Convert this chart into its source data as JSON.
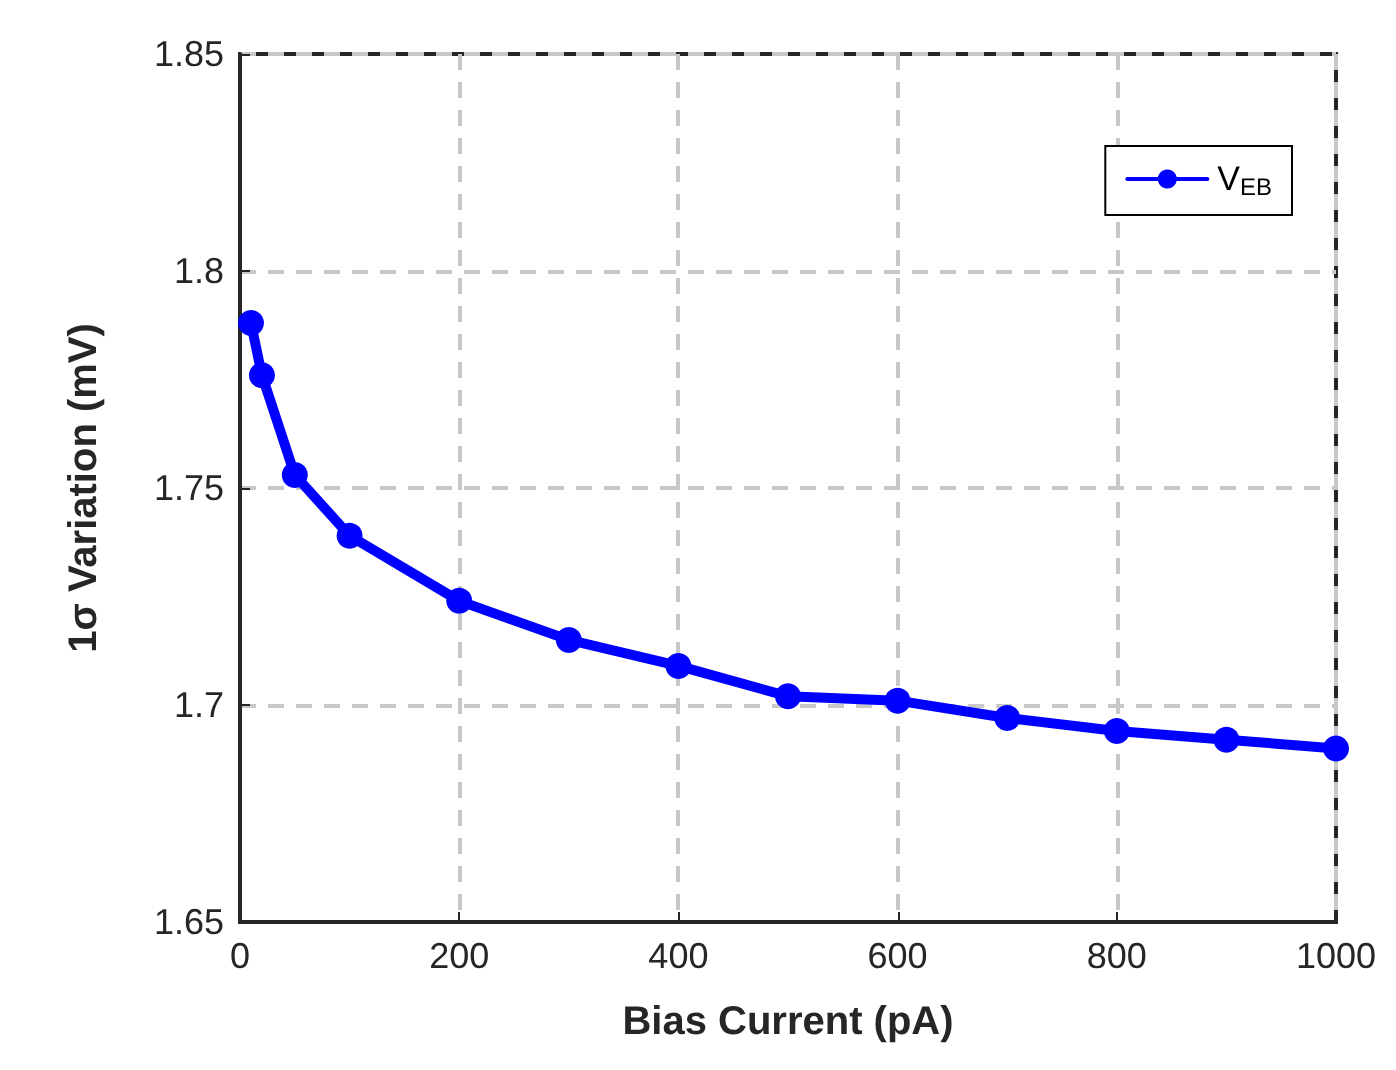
{
  "chart_data": {
    "type": "line",
    "xlabel": "Bias Current (pA)",
    "ylabel": "1σ Variation (mV)",
    "x": [
      10,
      20,
      50,
      100,
      200,
      300,
      400,
      500,
      600,
      700,
      800,
      900,
      1000
    ],
    "series": [
      {
        "name": "V$_{EB}$",
        "color": "#0000ff",
        "values": [
          1.788,
          1.776,
          1.753,
          1.739,
          1.724,
          1.715,
          1.709,
          1.702,
          1.701,
          1.697,
          1.694,
          1.692,
          1.69
        ]
      }
    ],
    "xlim": [
      0,
      1000
    ],
    "xticks": [
      0,
      200,
      400,
      600,
      800,
      1000
    ],
    "ylim": [
      1.65,
      1.85
    ],
    "yticks": [
      1.65,
      1.7,
      1.75,
      1.8,
      1.85
    ],
    "grid": true,
    "legend": "top right",
    "marker": "circle",
    "line_style": "solid"
  }
}
